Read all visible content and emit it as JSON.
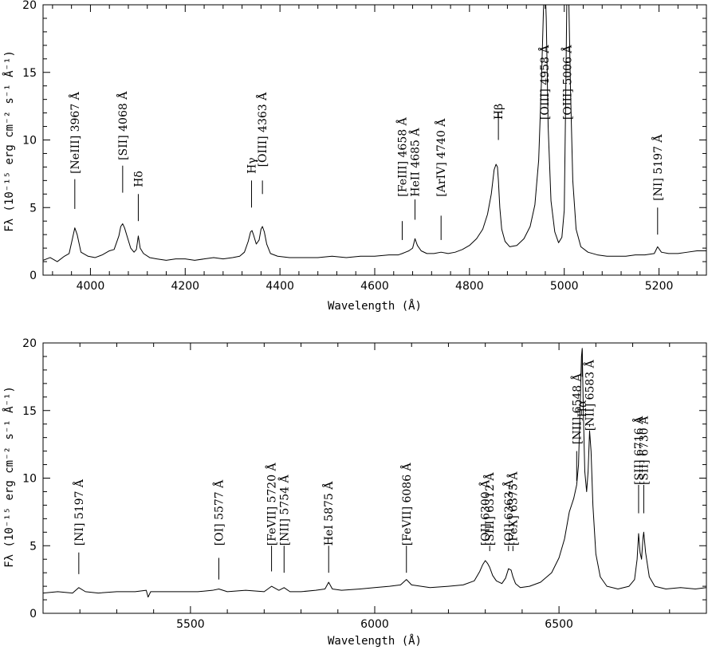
{
  "chart_data": [
    {
      "type": "line",
      "title": "",
      "xlabel": "Wavelength (Å)",
      "ylabel": "Fλ (10⁻¹⁵ erg cm⁻² s⁻¹ Å⁻¹)",
      "xlim": [
        3900,
        5300
      ],
      "ylim": [
        0,
        20
      ],
      "xticks": [
        4000,
        4200,
        4400,
        4600,
        4800,
        5000,
        5200
      ],
      "yticks": [
        0,
        5,
        10,
        15,
        20
      ],
      "grid": false,
      "legend": "none",
      "series": [
        {
          "x": [
            3900,
            3915,
            3930,
            3945,
            3955,
            3962,
            3967,
            3972,
            3980,
            3995,
            4010,
            4025,
            4040,
            4050,
            4060,
            4064,
            4068,
            4072,
            4078,
            4085,
            4092,
            4097,
            4101,
            4105,
            4112,
            4125,
            4140,
            4160,
            4180,
            4200,
            4220,
            4240,
            4260,
            4280,
            4300,
            4315,
            4325,
            4333,
            4338,
            4341,
            4344,
            4350,
            4356,
            4360,
            4363,
            4367,
            4372,
            4380,
            4395,
            4420,
            4450,
            4480,
            4510,
            4540,
            4570,
            4600,
            4630,
            4650,
            4658,
            4665,
            4672,
            4680,
            4685,
            4690,
            4698,
            4710,
            4725,
            4740,
            4755,
            4770,
            4785,
            4800,
            4815,
            4828,
            4838,
            4846,
            4852,
            4856,
            4859,
            4861,
            4864,
            4868,
            4875,
            4885,
            4900,
            4915,
            4928,
            4938,
            4946,
            4952,
            4956,
            4959,
            4962,
            4966,
            4972,
            4980,
            4988,
            4995,
            5000,
            5003,
            5006,
            5009,
            5013,
            5018,
            5025,
            5035,
            5050,
            5070,
            5090,
            5110,
            5130,
            5150,
            5170,
            5190,
            5197,
            5205,
            5220,
            5240,
            5260,
            5280,
            5300
          ],
          "values": [
            1.1,
            1.3,
            1.0,
            1.4,
            1.6,
            2.7,
            3.5,
            3.0,
            1.7,
            1.4,
            1.3,
            1.5,
            1.8,
            1.9,
            2.9,
            3.6,
            3.8,
            3.5,
            2.8,
            2.0,
            1.7,
            1.9,
            2.9,
            2.0,
            1.6,
            1.3,
            1.2,
            1.1,
            1.2,
            1.2,
            1.1,
            1.2,
            1.3,
            1.2,
            1.3,
            1.4,
            1.7,
            2.5,
            3.2,
            3.3,
            3.0,
            2.3,
            2.6,
            3.4,
            3.6,
            3.2,
            2.3,
            1.6,
            1.4,
            1.3,
            1.3,
            1.3,
            1.4,
            1.3,
            1.4,
            1.4,
            1.5,
            1.5,
            1.6,
            1.7,
            1.8,
            2.0,
            2.7,
            2.2,
            1.8,
            1.6,
            1.6,
            1.7,
            1.6,
            1.7,
            1.9,
            2.2,
            2.7,
            3.4,
            4.5,
            6.0,
            7.8,
            8.2,
            8.0,
            7.0,
            5.0,
            3.4,
            2.5,
            2.1,
            2.2,
            2.7,
            3.6,
            5.2,
            8.5,
            14.5,
            19.5,
            22.0,
            19.0,
            11.0,
            5.5,
            3.2,
            2.4,
            2.8,
            4.8,
            13.0,
            22.0,
            21.5,
            14.0,
            7.0,
            3.4,
            2.1,
            1.7,
            1.5,
            1.4,
            1.4,
            1.4,
            1.5,
            1.5,
            1.6,
            2.1,
            1.7,
            1.6,
            1.6,
            1.7,
            1.8,
            1.8
          ]
        }
      ],
      "annotations": [
        {
          "label": "[NeIII] 3967 Å",
          "x": 3967
        },
        {
          "label": "[SII] 4068 Å",
          "x": 4068
        },
        {
          "label": "Hδ",
          "x": 4101
        },
        {
          "label": "Hγ",
          "x": 4340
        },
        {
          "label": "[OIII] 4363 Å",
          "x": 4363
        },
        {
          "label": "[FeIII] 4658 Å",
          "x": 4658
        },
        {
          "label": "HeII 4685 Å",
          "x": 4685
        },
        {
          "label": "[ArIV] 4740 Å",
          "x": 4740
        },
        {
          "label": "Hβ",
          "x": 4861
        },
        {
          "label": "[OIII] 4958 Å",
          "x": 4958
        },
        {
          "label": "[OIII] 5006 Å",
          "x": 5006
        },
        {
          "label": "[NI] 5197 Å",
          "x": 5197
        }
      ]
    },
    {
      "type": "line",
      "title": "",
      "xlabel": "Wavelength (Å)",
      "ylabel": "Fλ (10⁻¹⁵ erg cm⁻² s⁻¹ Å⁻¹)",
      "xlim": [
        5100,
        6900
      ],
      "ylim": [
        0,
        20
      ],
      "xticks": [
        5500,
        6000,
        6500
      ],
      "yticks": [
        0,
        5,
        10,
        15,
        20
      ],
      "grid": false,
      "legend": "none",
      "series": [
        {
          "x": [
            5100,
            5140,
            5180,
            5197,
            5215,
            5250,
            5300,
            5350,
            5380,
            5385,
            5392,
            5420,
            5470,
            5520,
            5560,
            5577,
            5600,
            5650,
            5700,
            5720,
            5740,
            5754,
            5770,
            5800,
            5840,
            5865,
            5875,
            5885,
            5910,
            5960,
            6000,
            6040,
            6070,
            6086,
            6100,
            6150,
            6200,
            6240,
            6270,
            6285,
            6293,
            6300,
            6306,
            6312,
            6320,
            6330,
            6345,
            6355,
            6363,
            6370,
            6375,
            6382,
            6395,
            6420,
            6450,
            6480,
            6500,
            6515,
            6528,
            6540,
            6548,
            6553,
            6557,
            6561,
            6563,
            6566,
            6570,
            6575,
            6579,
            6583,
            6587,
            6592,
            6600,
            6612,
            6630,
            6660,
            6690,
            6705,
            6712,
            6716,
            6720,
            6724,
            6728,
            6730,
            6735,
            6745,
            6760,
            6790,
            6830,
            6870,
            6900
          ],
          "values": [
            1.5,
            1.6,
            1.5,
            1.9,
            1.6,
            1.5,
            1.6,
            1.6,
            1.7,
            1.2,
            1.6,
            1.6,
            1.6,
            1.6,
            1.7,
            1.8,
            1.6,
            1.7,
            1.6,
            2.0,
            1.7,
            1.9,
            1.6,
            1.6,
            1.7,
            1.8,
            2.3,
            1.8,
            1.7,
            1.8,
            1.9,
            2.0,
            2.1,
            2.5,
            2.1,
            1.9,
            2.0,
            2.1,
            2.4,
            3.1,
            3.6,
            3.9,
            3.7,
            3.4,
            2.8,
            2.4,
            2.2,
            2.6,
            3.3,
            3.2,
            2.7,
            2.2,
            1.9,
            2.0,
            2.3,
            3.0,
            4.1,
            5.5,
            7.5,
            8.5,
            9.5,
            11.0,
            15.0,
            19.0,
            19.6,
            15.0,
            10.5,
            9.0,
            10.5,
            13.5,
            12.0,
            8.0,
            4.4,
            2.7,
            2.0,
            1.8,
            2.0,
            2.5,
            4.0,
            5.9,
            4.5,
            4.0,
            5.6,
            6.0,
            4.5,
            2.7,
            2.0,
            1.8,
            1.9,
            1.8,
            1.9
          ]
        }
      ],
      "annotations": [
        {
          "label": "[NI] 5197 Å",
          "x": 5197
        },
        {
          "label": "[OI] 5577 Å",
          "x": 5577
        },
        {
          "label": "[FeVII] 5720 Å",
          "x": 5720
        },
        {
          "label": "[NII] 5754 Å",
          "x": 5754
        },
        {
          "label": "HeI 5875 Å",
          "x": 5875
        },
        {
          "label": "[FeVII] 6086 Å",
          "x": 6086
        },
        {
          "label": "[OI] 6300 Å",
          "x": 6300
        },
        {
          "label": "[SIII] 6312 Å",
          "x": 6312
        },
        {
          "label": "[OI] 6363 Å",
          "x": 6363
        },
        {
          "label": "[FeX] 6375 Å",
          "x": 6375
        },
        {
          "label": "[NII] 6548 Å",
          "x": 6548
        },
        {
          "label": "Hα",
          "x": 6563
        },
        {
          "label": "[NII] 6583 Å",
          "x": 6583
        },
        {
          "label": "[SII] 6716 Å",
          "x": 6716
        },
        {
          "label": "[SII] 6730 Å",
          "x": 6730
        }
      ]
    }
  ]
}
